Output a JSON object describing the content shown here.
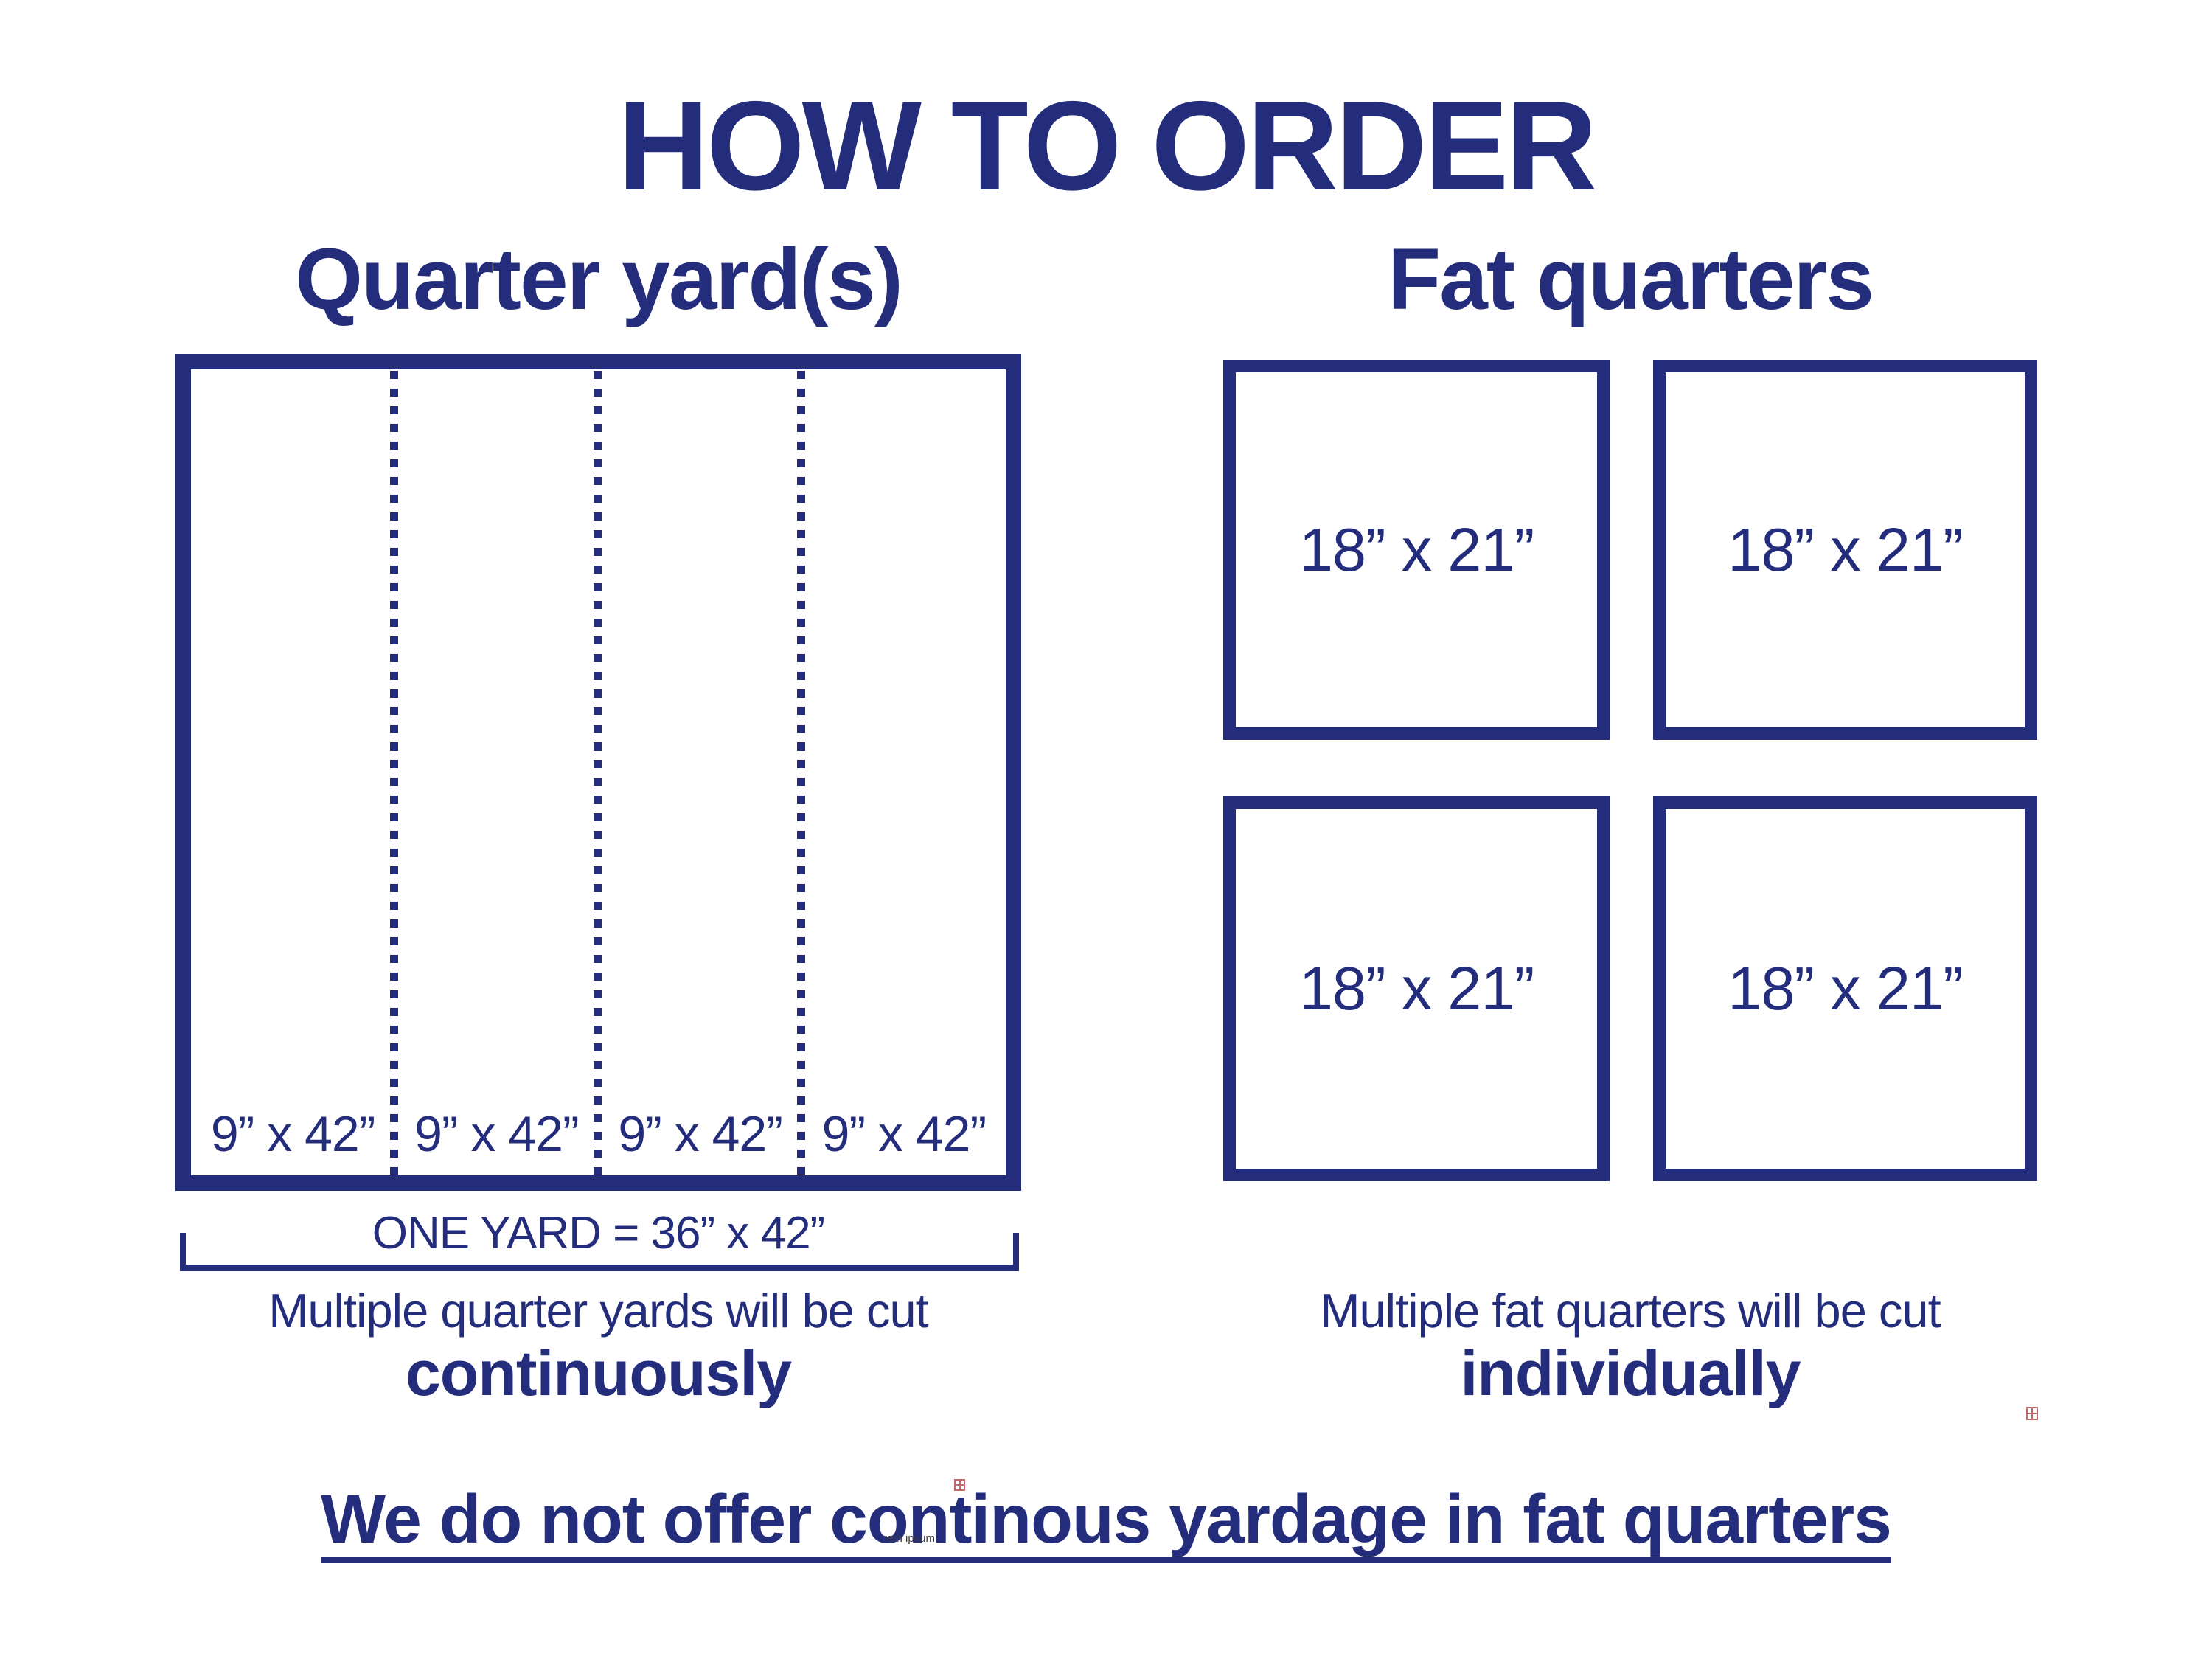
{
  "title": "HOW TO ORDER",
  "left_section": {
    "heading": "Quarter yard(s)",
    "strip_labels": [
      "9” x 42”",
      "9” x 42”",
      "9” x 42”",
      "9” x 42”"
    ],
    "one_yard_label": "ONE YARD = 36” x 42”",
    "note_line1": "Multiple quarter yards will be cut",
    "note_line2": "continuously"
  },
  "right_section": {
    "heading": "Fat quarters",
    "square_labels": [
      "18” x 21”",
      "18” x 21”",
      "18” x 21”",
      "18” x 21”"
    ],
    "note_line1": "Multiple fat quarters will be cut",
    "note_line2": "individually"
  },
  "footer": {
    "statement": "We do not offer continous yardage in fat quarters"
  },
  "artifacts": {
    "watermark_text": "rem ipsum"
  },
  "colors": {
    "navy": "#232d7c",
    "artifact_red": "#bf6a6a",
    "watermark_gray": "#3a3a3a",
    "background": "#ffffff"
  }
}
